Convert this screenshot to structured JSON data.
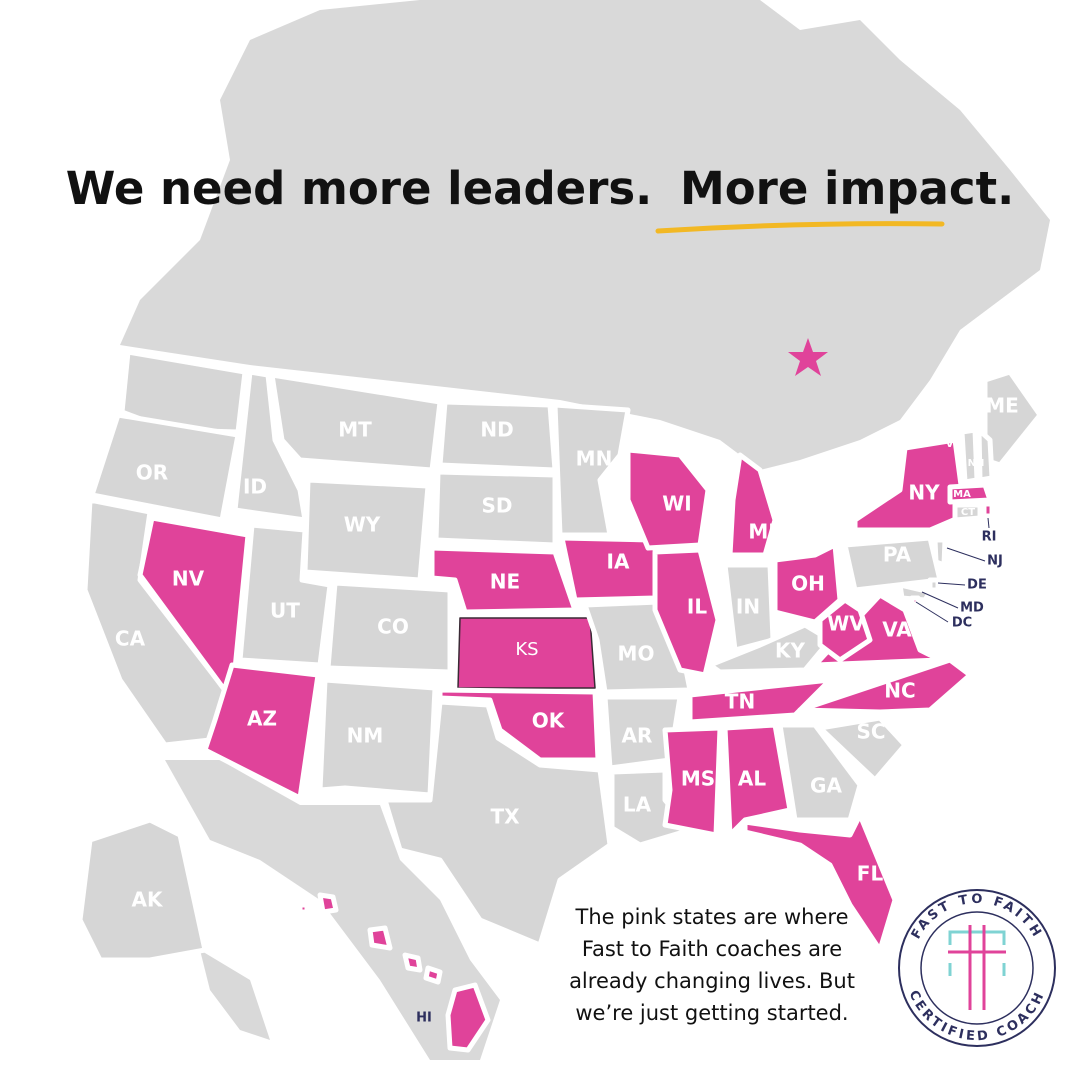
{
  "title": {
    "part1": "We need more leaders.",
    "part2": "More impact."
  },
  "caption": [
    "The pink states are where",
    "Fast to Faith coaches are",
    "already changing lives. But",
    "we’re just getting started."
  ],
  "badge": {
    "top": "FAST TO FAITH",
    "bottom": "CERTIFIED COACH"
  },
  "states": [
    {
      "label": "OR",
      "pink": false
    },
    {
      "label": "CA",
      "pink": false
    },
    {
      "label": "ID",
      "pink": false
    },
    {
      "label": "NV",
      "pink": true
    },
    {
      "label": "MT",
      "pink": false
    },
    {
      "label": "WY",
      "pink": false
    },
    {
      "label": "UT",
      "pink": false
    },
    {
      "label": "AZ",
      "pink": true
    },
    {
      "label": "CO",
      "pink": false
    },
    {
      "label": "NM",
      "pink": false
    },
    {
      "label": "ND",
      "pink": false
    },
    {
      "label": "SD",
      "pink": false
    },
    {
      "label": "NE",
      "pink": true
    },
    {
      "label": "KS",
      "pink": true
    },
    {
      "label": "OK",
      "pink": true
    },
    {
      "label": "TX",
      "pink": false
    },
    {
      "label": "MN",
      "pink": false
    },
    {
      "label": "IA",
      "pink": true
    },
    {
      "label": "MO",
      "pink": false
    },
    {
      "label": "AR",
      "pink": false
    },
    {
      "label": "LA",
      "pink": false
    },
    {
      "label": "WI",
      "pink": true
    },
    {
      "label": "IL",
      "pink": true
    },
    {
      "label": "MI",
      "pink": true
    },
    {
      "label": "IN",
      "pink": false
    },
    {
      "label": "OH",
      "pink": true
    },
    {
      "label": "KY",
      "pink": false
    },
    {
      "label": "TN",
      "pink": true
    },
    {
      "label": "MS",
      "pink": true
    },
    {
      "label": "AL",
      "pink": true
    },
    {
      "label": "GA",
      "pink": false
    },
    {
      "label": "SC",
      "pink": false
    },
    {
      "label": "NC",
      "pink": true
    },
    {
      "label": "VA",
      "pink": true
    },
    {
      "label": "WV",
      "pink": true
    },
    {
      "label": "PA",
      "pink": false
    },
    {
      "label": "NY",
      "pink": true
    },
    {
      "label": "ME",
      "pink": false
    },
    {
      "label": "VT",
      "pink": false
    },
    {
      "label": "NH",
      "pink": false
    },
    {
      "label": "MA",
      "pink": true
    },
    {
      "label": "CT",
      "pink": false
    },
    {
      "label": "RI",
      "pink": true
    },
    {
      "label": "NJ",
      "pink": false
    },
    {
      "label": "DE",
      "pink": false
    },
    {
      "label": "MD",
      "pink": false
    },
    {
      "label": "DC",
      "pink": true
    },
    {
      "label": "FL",
      "pink": true
    },
    {
      "label": "AK",
      "pink": false
    },
    {
      "label": "HI",
      "pink": true
    }
  ]
}
